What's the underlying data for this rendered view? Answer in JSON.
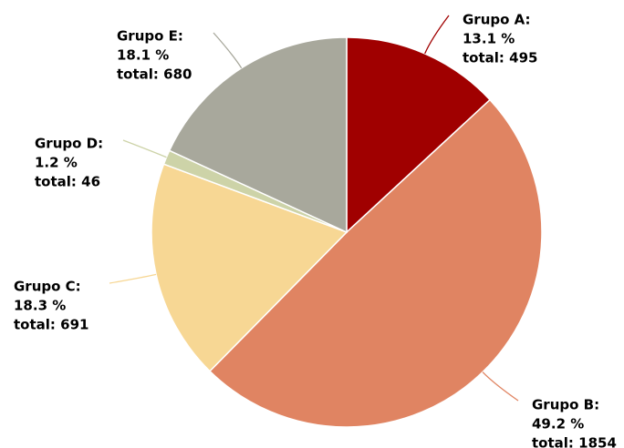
{
  "chart_data": {
    "type": "pie",
    "categories": [
      "Grupo A:",
      "Grupo B:",
      "Grupo C:",
      "Grupo D:",
      "Grupo E:"
    ],
    "values": [
      13.1,
      49.2,
      18.3,
      1.2,
      18.1
    ],
    "value_labels": [
      "13.1 %",
      "49.2 %",
      "18.3 %",
      "1.2 %",
      "18.1 %"
    ],
    "totals": [
      495,
      1854,
      691,
      46,
      680
    ],
    "total_labels": [
      "total: 495",
      "total: 1854",
      "total: 691",
      "total: 46",
      "total: 680"
    ],
    "colors": [
      "#a00000",
      "#e08462",
      "#f7d794",
      "#cdd3a8",
      "#a8a89c"
    ]
  }
}
